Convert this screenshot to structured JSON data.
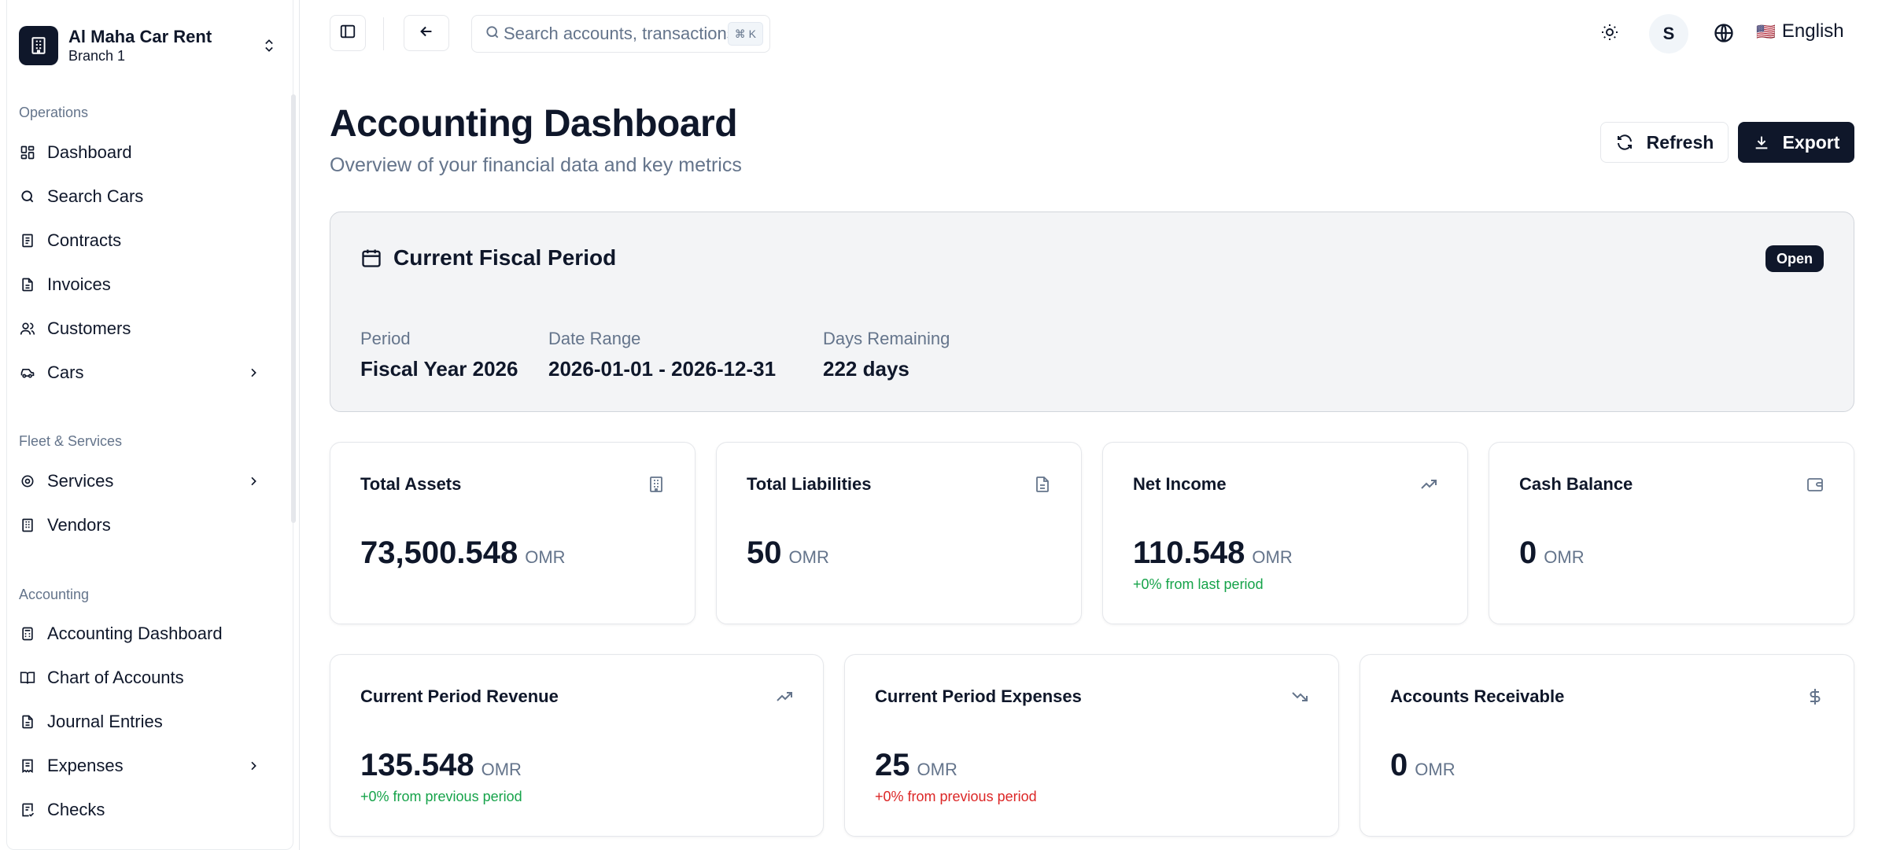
{
  "brand": {
    "name": "Al Maha Car Rent",
    "branch": "Branch 1"
  },
  "sidebar": {
    "sections": [
      {
        "label": "Operations",
        "items": [
          {
            "label": "Dashboard",
            "icon": "dashboard-icon"
          },
          {
            "label": "Search Cars",
            "icon": "search-icon"
          },
          {
            "label": "Contracts",
            "icon": "contract-icon"
          },
          {
            "label": "Invoices",
            "icon": "invoice-icon"
          },
          {
            "label": "Customers",
            "icon": "users-icon"
          },
          {
            "label": "Cars",
            "icon": "car-icon",
            "expandable": true
          }
        ]
      },
      {
        "label": "Fleet & Services",
        "items": [
          {
            "label": "Services",
            "icon": "gear-icon",
            "expandable": true
          },
          {
            "label": "Vendors",
            "icon": "building-icon"
          }
        ]
      },
      {
        "label": "Accounting",
        "items": [
          {
            "label": "Accounting Dashboard",
            "icon": "calculator-icon"
          },
          {
            "label": "Chart of Accounts",
            "icon": "book-icon"
          },
          {
            "label": "Journal Entries",
            "icon": "document-icon"
          },
          {
            "label": "Expenses",
            "icon": "receipt-icon",
            "expandable": true
          },
          {
            "label": "Checks",
            "icon": "check-document-icon"
          }
        ]
      }
    ]
  },
  "topbar": {
    "search_placeholder": "Search accounts, transactions...",
    "search_shortcut": "⌘ K",
    "avatar_initial": "S",
    "language_flag": "🇺🇸",
    "language": "English"
  },
  "page": {
    "title": "Accounting Dashboard",
    "subtitle": "Overview of your financial data and key metrics",
    "refresh_label": "Refresh",
    "export_label": "Export"
  },
  "fiscal": {
    "title": "Current Fiscal Period",
    "status": "Open",
    "period_label": "Period",
    "period_value": "Fiscal Year 2026",
    "range_label": "Date Range",
    "range_value": "2026-01-01 - 2026-12-31",
    "remaining_label": "Days Remaining",
    "remaining_value": "222 days"
  },
  "cards_row1": [
    {
      "title": "Total Assets",
      "value": "73,500.548",
      "currency": "OMR",
      "icon": "building-icon",
      "delta": ""
    },
    {
      "title": "Total Liabilities",
      "value": "50",
      "currency": "OMR",
      "icon": "document-icon",
      "delta": ""
    },
    {
      "title": "Net Income",
      "value": "110.548",
      "currency": "OMR",
      "icon": "trending-up-icon",
      "delta": "+0% from last period"
    },
    {
      "title": "Cash Balance",
      "value": "0",
      "currency": "OMR",
      "icon": "wallet-icon",
      "delta": ""
    }
  ],
  "cards_row2": [
    {
      "title": "Current Period Revenue",
      "value": "135.548",
      "currency": "OMR",
      "icon": "trending-up-icon",
      "delta": "+0% from previous period"
    },
    {
      "title": "Current Period Expenses",
      "value": "25",
      "currency": "OMR",
      "icon": "trending-down-icon",
      "delta": "+0% from previous period"
    },
    {
      "title": "Accounts Receivable",
      "value": "0",
      "currency": "OMR",
      "icon": "dollar-icon",
      "delta": ""
    }
  ],
  "colors": {
    "primary": "#0f172a",
    "muted": "#64748b",
    "positive": "#16a34a",
    "negative": "#dc2626",
    "panel": "#f3f4f6"
  }
}
